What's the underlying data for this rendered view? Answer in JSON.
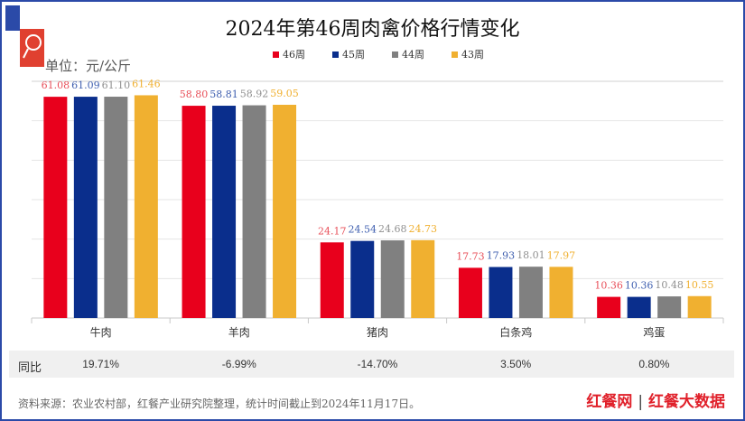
{
  "chart_data": {
    "type": "bar",
    "title": "2024年第46周肉禽价格行情变化",
    "unit_label": "单位：元/公斤",
    "categories": [
      "牛肉",
      "羊肉",
      "猪肉",
      "白条鸡",
      "鸡蛋"
    ],
    "series": [
      {
        "name": "46周",
        "color": "#e8001c",
        "values": [
          61.08,
          58.8,
          24.17,
          17.73,
          10.36
        ]
      },
      {
        "name": "45周",
        "color": "#0a2e8c",
        "values": [
          61.09,
          58.81,
          24.54,
          17.93,
          10.36
        ]
      },
      {
        "name": "44周",
        "color": "#808080",
        "values": [
          61.1,
          58.92,
          24.68,
          18.01,
          10.48
        ]
      },
      {
        "name": "43周",
        "color": "#f0b030",
        "values": [
          61.46,
          59.05,
          24.73,
          17.97,
          10.55
        ]
      }
    ],
    "label_colors": [
      "#e8505a",
      "#4060b0",
      "#909090",
      "#f0b030"
    ],
    "ylim": [
      5,
      65
    ],
    "grid": true,
    "legend": "top-center"
  },
  "yoy": {
    "label": "同比",
    "values": [
      "19.71%",
      "-6.99%",
      "-14.70%",
      "3.50%",
      "0.80%"
    ]
  },
  "source": "资料来源：农业农村部，红餐产业研究院整理，统计时间截止到2024年11月17日。",
  "brand": {
    "name1": "红餐网",
    "sep": "|",
    "name2": "红餐大数据"
  }
}
